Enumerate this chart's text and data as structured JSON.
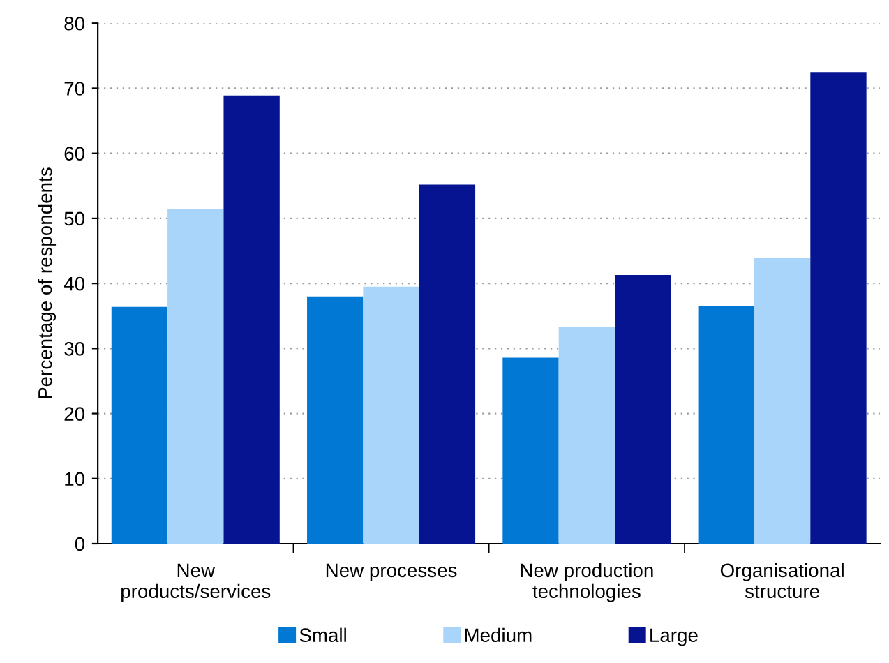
{
  "chart_data": {
    "type": "bar",
    "ylabel": "Percentage of respondents",
    "categories": [
      "New\nproducts/services",
      "New processes",
      "New production\ntechnologies",
      "Organisational\nstructure"
    ],
    "series": [
      {
        "name": "Small",
        "color": "#0078d4",
        "values": [
          36.4,
          38.0,
          28.6,
          36.5
        ]
      },
      {
        "name": "Medium",
        "color": "#a9d5fb",
        "values": [
          51.5,
          39.5,
          33.3,
          43.9
        ]
      },
      {
        "name": "Large",
        "color": "#061492",
        "values": [
          68.9,
          55.2,
          41.3,
          72.5
        ]
      }
    ],
    "ylim": [
      0,
      80
    ],
    "yticks": [
      0,
      10,
      20,
      30,
      40,
      50,
      60,
      70,
      80
    ],
    "grid": "y",
    "legend": "bottom"
  }
}
